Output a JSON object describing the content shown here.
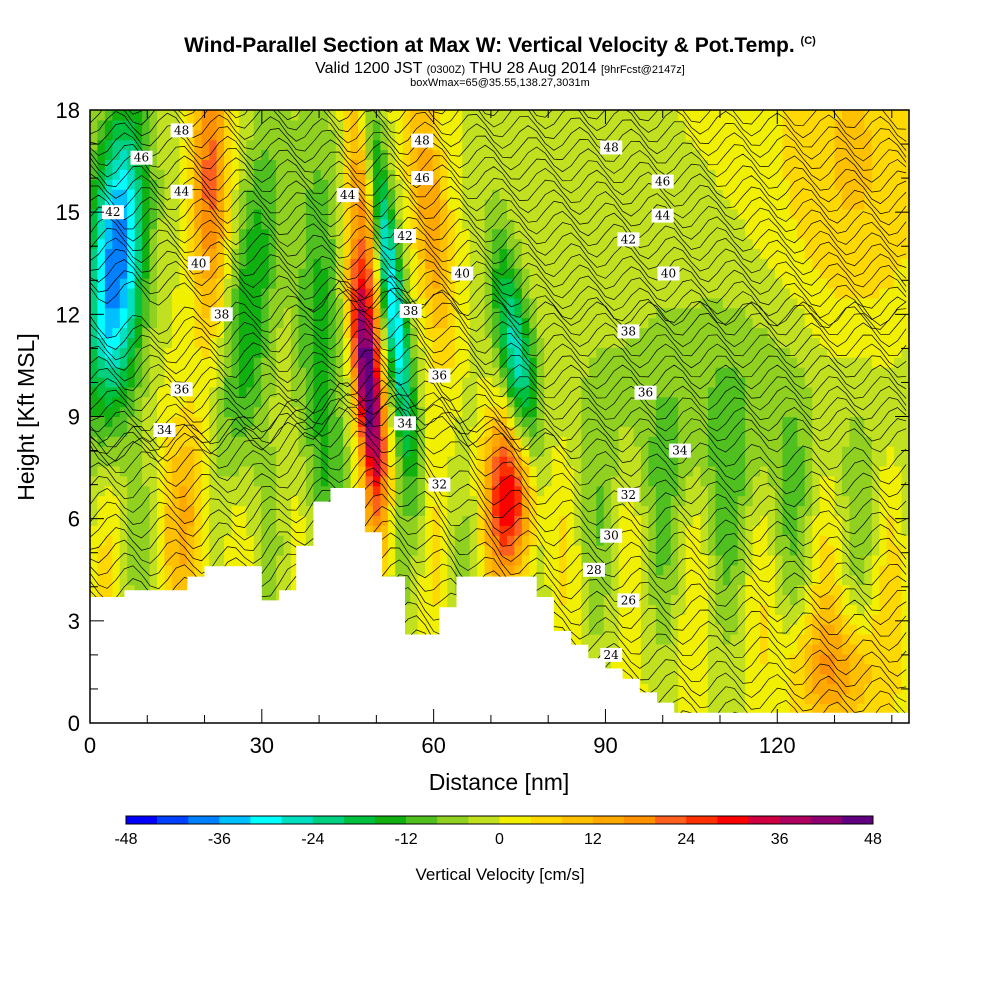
{
  "chart_data": {
    "type": "heatmap",
    "title": "Wind-Parallel Section at Max W: Vertical Velocity & Pot.Temp.",
    "title_mark": "(C)",
    "subtitle_main": "Valid 1200 JST",
    "subtitle_zulu": "(0300Z)",
    "subtitle_date": "THU 28 Aug 2014",
    "subtitle_fcst": "[9hrFcst@2147z]",
    "subtitle2": "boxWmax=65@35.55,138.27,3031m",
    "xlabel": "Distance [nm]",
    "ylabel": "Height [Kft MSL]",
    "xlim": [
      0,
      143
    ],
    "ylim": [
      0,
      18
    ],
    "x_ticks": [
      "0",
      "30",
      "60",
      "90",
      "120"
    ],
    "y_ticks": [
      "0",
      "3",
      "6",
      "9",
      "12",
      "15",
      "18"
    ],
    "colorbar": {
      "title": "Vertical Velocity [cm/s]",
      "tick_labels": [
        "-48",
        "-36",
        "-24",
        "-12",
        "0",
        "12",
        "24",
        "36",
        "48"
      ],
      "colors": [
        "#0000ff",
        "#0040ff",
        "#0080ff",
        "#00c0ff",
        "#00ffff",
        "#00e0c0",
        "#00d080",
        "#00c040",
        "#10b010",
        "#50c020",
        "#90d020",
        "#c0e020",
        "#f0f000",
        "#ffd800",
        "#ffc000",
        "#ffa800",
        "#ff9000",
        "#ff6020",
        "#ff3000",
        "#ff0000",
        "#d00040",
        "#b00060",
        "#900070",
        "#600080"
      ]
    },
    "theta_contour_labels": [
      "48",
      "46",
      "44",
      "42",
      "40",
      "38",
      "36",
      "34",
      "32",
      "30",
      "28",
      "26",
      "24"
    ],
    "terrain": [
      [
        0,
        3.7
      ],
      [
        6,
        3.7
      ],
      [
        6,
        3.9
      ],
      [
        17,
        3.9
      ],
      [
        17,
        4.3
      ],
      [
        20,
        4.3
      ],
      [
        20,
        4.6
      ],
      [
        30,
        4.6
      ],
      [
        30,
        3.6
      ],
      [
        33,
        3.6
      ],
      [
        33,
        3.9
      ],
      [
        36,
        3.9
      ],
      [
        36,
        5.2
      ],
      [
        39,
        5.2
      ],
      [
        39,
        6.5
      ],
      [
        42,
        6.5
      ],
      [
        42,
        6.9
      ],
      [
        48,
        6.9
      ],
      [
        48,
        5.6
      ],
      [
        51,
        5.6
      ],
      [
        51,
        4.3
      ],
      [
        55,
        4.3
      ],
      [
        55,
        2.6
      ],
      [
        61,
        2.6
      ],
      [
        61,
        3.4
      ],
      [
        64,
        3.4
      ],
      [
        64,
        4.3
      ],
      [
        72,
        4.3
      ],
      [
        72,
        4.3
      ],
      [
        78,
        4.3
      ],
      [
        78,
        3.7
      ],
      [
        81,
        3.7
      ],
      [
        81,
        2.7
      ],
      [
        84,
        2.7
      ],
      [
        84,
        2.3
      ],
      [
        87,
        2.3
      ],
      [
        87,
        1.9
      ],
      [
        90,
        1.9
      ],
      [
        90,
        1.6
      ],
      [
        93,
        1.6
      ],
      [
        93,
        1.3
      ],
      [
        96,
        1.3
      ],
      [
        96,
        0.9
      ],
      [
        99,
        0.9
      ],
      [
        99,
        0.6
      ],
      [
        102,
        0.6
      ],
      [
        102,
        0.3
      ],
      [
        143,
        0.3
      ]
    ]
  }
}
